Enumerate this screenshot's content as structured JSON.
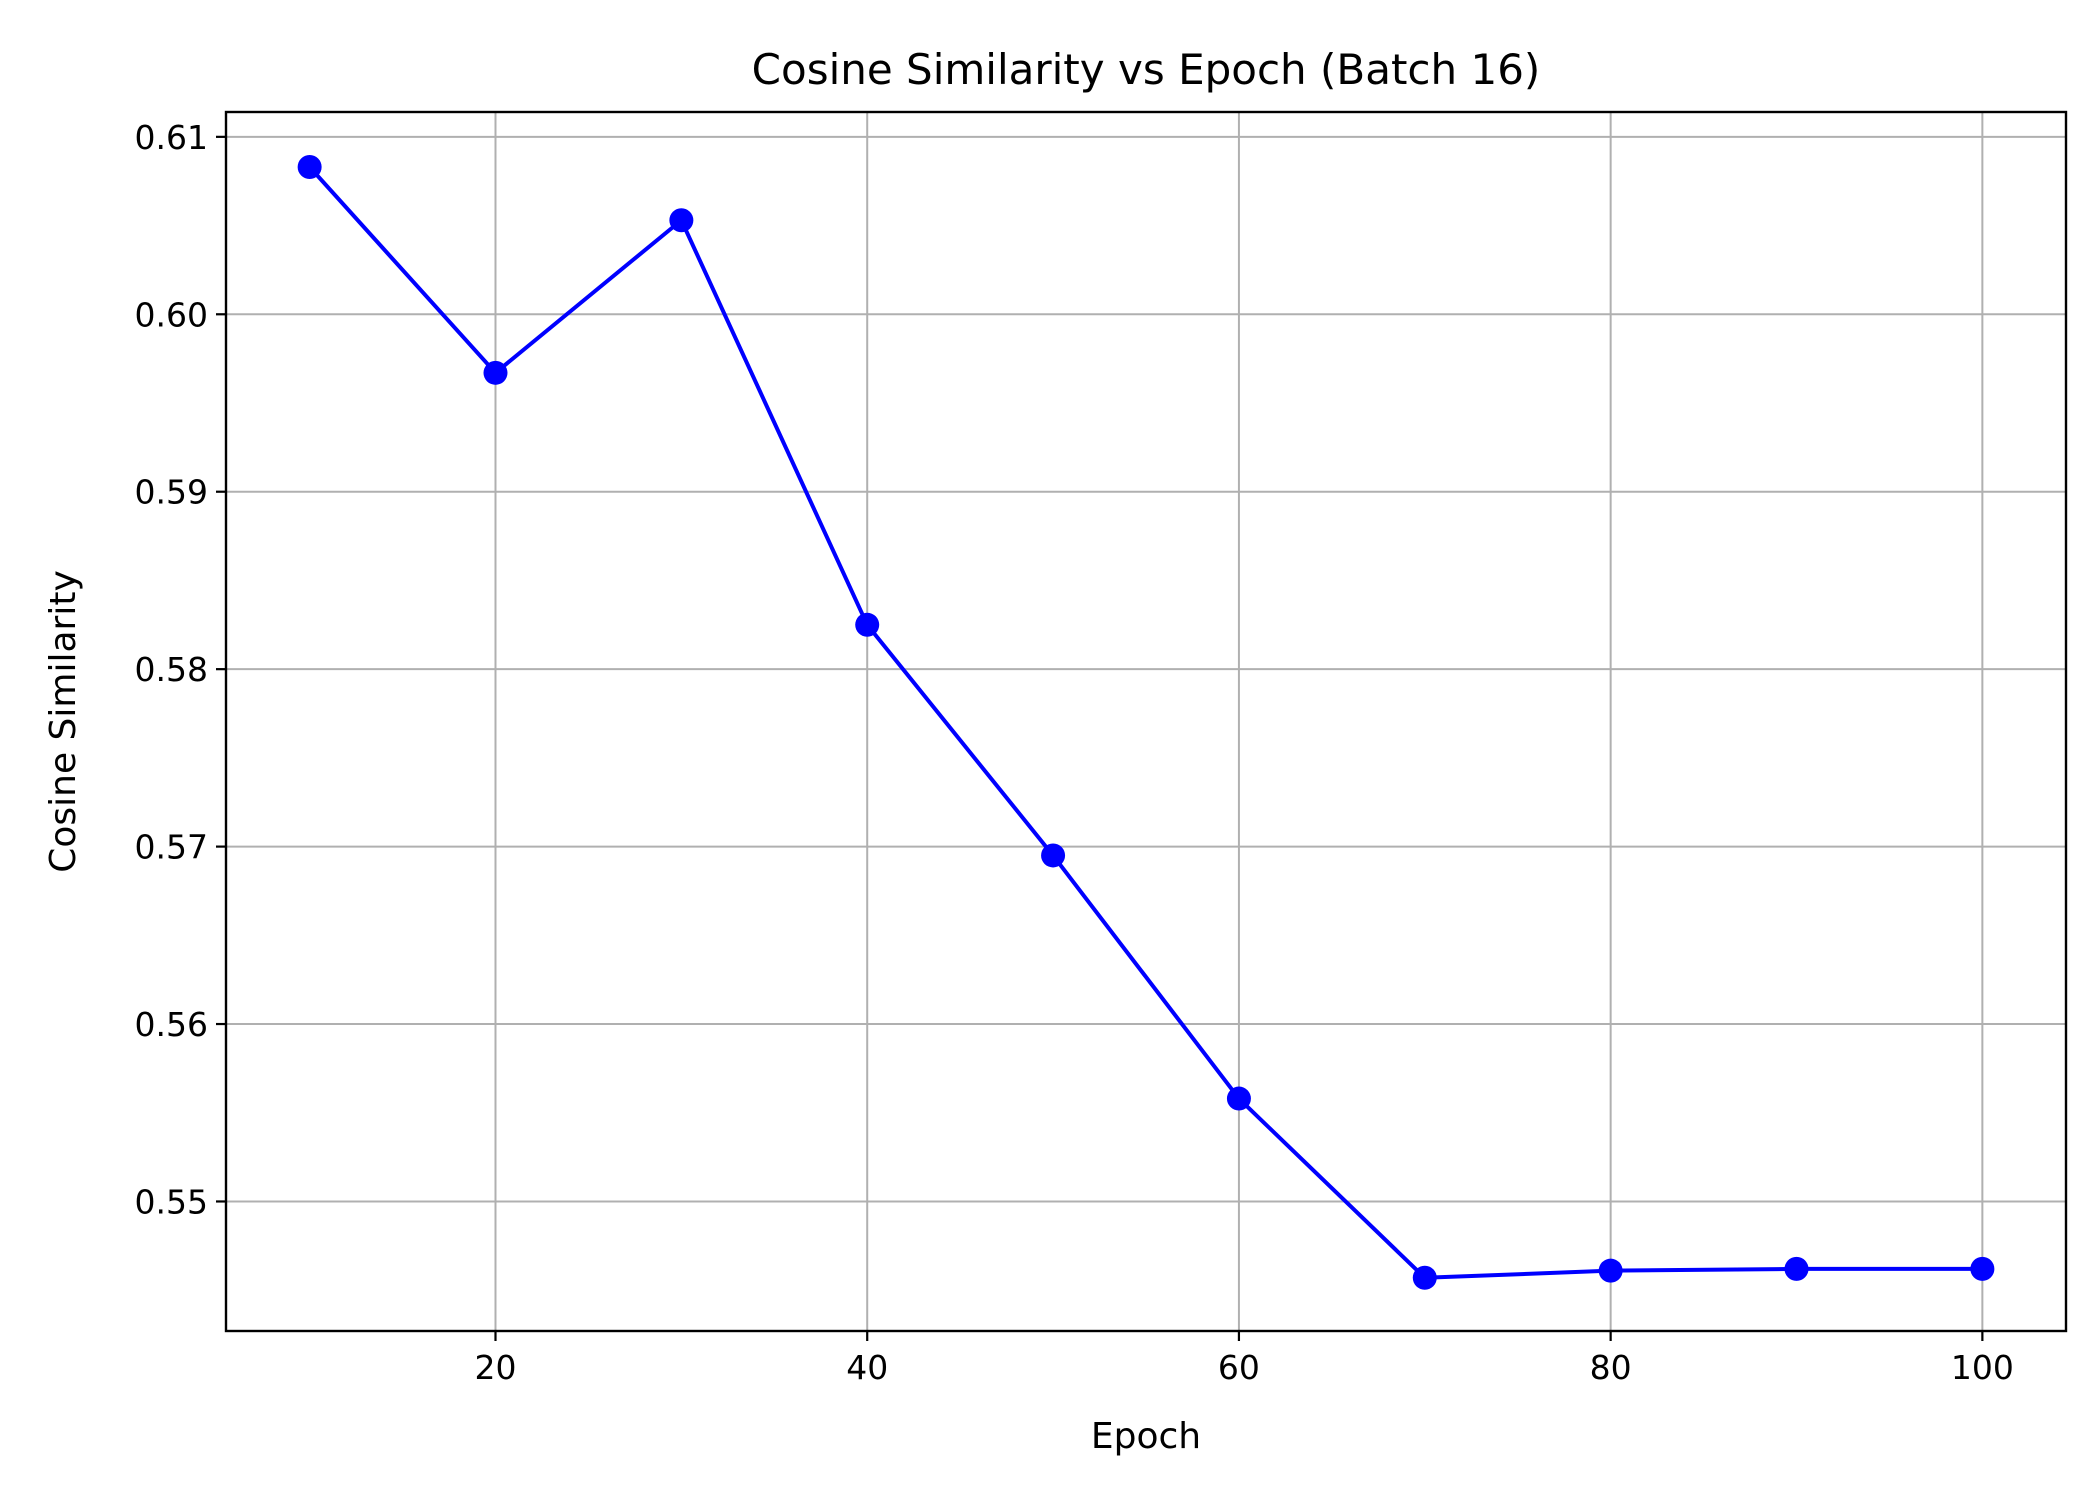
{
  "chart_data": {
    "type": "line",
    "title": "Cosine Similarity vs Epoch (Batch 16)",
    "xlabel": "Epoch",
    "ylabel": "Cosine Similarity",
    "xlim": [
      5.5,
      104.5
    ],
    "ylim": [
      0.5427,
      0.6114
    ],
    "xticks": [
      20,
      40,
      60,
      80,
      100
    ],
    "xtick_labels": [
      "20",
      "40",
      "60",
      "80",
      "100"
    ],
    "yticks": [
      0.55,
      0.56,
      0.57,
      0.58,
      0.59,
      0.6,
      0.61
    ],
    "ytick_labels": [
      "0.55",
      "0.56",
      "0.57",
      "0.58",
      "0.59",
      "0.60",
      "0.61"
    ],
    "grid": true,
    "series": [
      {
        "color": "#0000ff",
        "marker": "circle",
        "x": [
          10,
          20,
          30,
          40,
          50,
          60,
          70,
          80,
          90,
          100
        ],
        "y": [
          0.6083,
          0.5967,
          0.6053,
          0.5825,
          0.5695,
          0.5558,
          0.5457,
          0.5461,
          0.5462,
          0.5462
        ]
      }
    ]
  }
}
